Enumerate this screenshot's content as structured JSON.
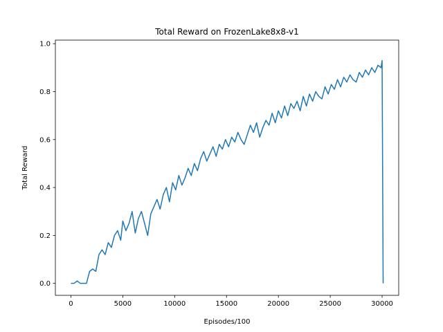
{
  "chart_data": {
    "type": "line",
    "title": "Total Reward on FrozenLake8x8-v1",
    "xlabel": "Episodes/100",
    "ylabel": "Total Reward",
    "xlim": [
      -1500,
      31600
    ],
    "ylim": [
      -0.05,
      1.015
    ],
    "xticks": [
      0,
      5000,
      10000,
      15000,
      20000,
      25000,
      30000
    ],
    "xtick_labels": [
      "0",
      "5000",
      "10000",
      "15000",
      "20000",
      "25000",
      "30000"
    ],
    "yticks": [
      0.0,
      0.2,
      0.4,
      0.6,
      0.8,
      1.0
    ],
    "ytick_labels": [
      "0.0",
      "0.2",
      "0.4",
      "0.6",
      "0.8",
      "1.0"
    ],
    "grid": false,
    "legend": "none",
    "series_color": "#1f77b4",
    "series": [
      {
        "x": [
          0,
          300,
          600,
          900,
          1200,
          1500,
          1800,
          2100,
          2400,
          2700,
          3000,
          3300,
          3600,
          3900,
          4200,
          4500,
          4800,
          5000,
          5300,
          5600,
          5900,
          6200,
          6500,
          6800,
          7100,
          7400,
          7700,
          8000,
          8300,
          8600,
          8900,
          9200,
          9500,
          9800,
          10100,
          10400,
          10700,
          11000,
          11300,
          11600,
          11900,
          12200,
          12500,
          12800,
          13100,
          13400,
          13700,
          14000,
          14300,
          14600,
          14900,
          15200,
          15500,
          15800,
          16100,
          16400,
          16700,
          17000,
          17300,
          17600,
          17900,
          18200,
          18500,
          18800,
          19100,
          19400,
          19700,
          20000,
          20300,
          20600,
          20900,
          21200,
          21500,
          21800,
          22100,
          22400,
          22700,
          23000,
          23300,
          23600,
          23900,
          24200,
          24500,
          24800,
          25100,
          25400,
          25700,
          26000,
          26300,
          26600,
          26900,
          27200,
          27500,
          27800,
          28100,
          28400,
          28700,
          29000,
          29300,
          29600,
          29900,
          30000,
          30100
        ],
        "y": [
          0.0,
          0.0,
          0.01,
          0.0,
          0.0,
          0.0,
          0.05,
          0.06,
          0.05,
          0.12,
          0.14,
          0.12,
          0.17,
          0.15,
          0.2,
          0.22,
          0.18,
          0.26,
          0.22,
          0.25,
          0.3,
          0.21,
          0.27,
          0.3,
          0.25,
          0.2,
          0.29,
          0.32,
          0.35,
          0.31,
          0.37,
          0.4,
          0.34,
          0.42,
          0.39,
          0.45,
          0.41,
          0.44,
          0.48,
          0.45,
          0.5,
          0.47,
          0.52,
          0.55,
          0.51,
          0.54,
          0.57,
          0.53,
          0.58,
          0.56,
          0.6,
          0.57,
          0.61,
          0.59,
          0.63,
          0.6,
          0.58,
          0.62,
          0.66,
          0.63,
          0.67,
          0.61,
          0.65,
          0.68,
          0.66,
          0.71,
          0.67,
          0.72,
          0.69,
          0.74,
          0.7,
          0.75,
          0.73,
          0.76,
          0.72,
          0.78,
          0.74,
          0.79,
          0.76,
          0.8,
          0.78,
          0.77,
          0.82,
          0.79,
          0.83,
          0.81,
          0.85,
          0.82,
          0.86,
          0.84,
          0.87,
          0.85,
          0.84,
          0.88,
          0.86,
          0.89,
          0.87,
          0.9,
          0.88,
          0.91,
          0.9,
          0.93,
          0.0
        ]
      }
    ]
  }
}
